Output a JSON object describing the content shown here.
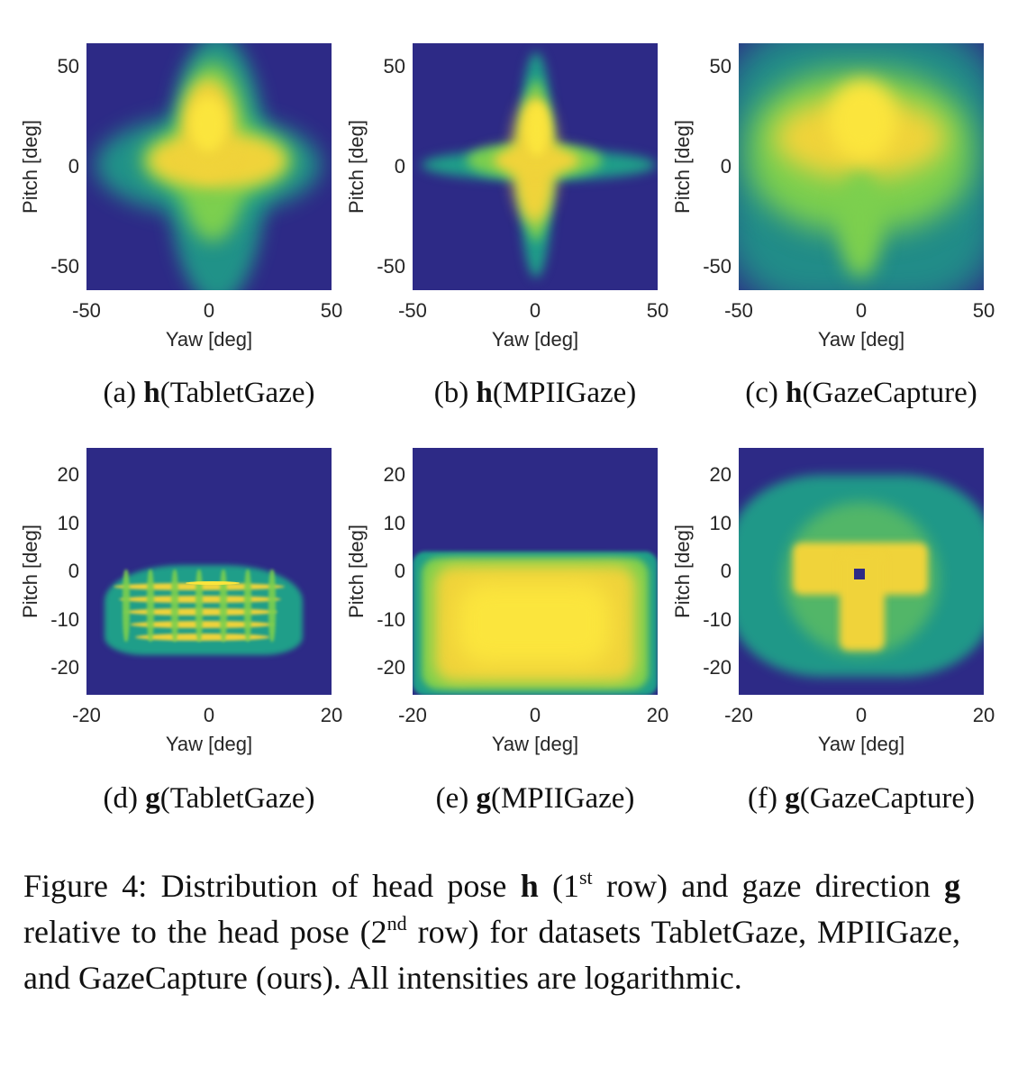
{
  "figure": {
    "panels": [
      {
        "id": "a",
        "label_prefix": "(a)",
        "label_bold": "h",
        "label_rest": "(TabletGaze)",
        "xlabel": "Yaw [deg]",
        "ylabel": "Pitch [deg]",
        "xticks": [
          "-50",
          "0",
          "50"
        ],
        "yticks": [
          "50",
          "0",
          "-50"
        ],
        "pattern": "cross-wide"
      },
      {
        "id": "b",
        "label_prefix": "(b)",
        "label_bold": "h",
        "label_rest": "(MPIIGaze)",
        "xlabel": "Yaw [deg]",
        "ylabel": "Pitch [deg]",
        "xticks": [
          "-50",
          "0",
          "50"
        ],
        "yticks": [
          "50",
          "0",
          "-50"
        ],
        "pattern": "star"
      },
      {
        "id": "c",
        "label_prefix": "(c)",
        "label_bold": "h",
        "label_rest": "(GazeCapture)",
        "xlabel": "Yaw [deg]",
        "ylabel": "Pitch [deg]",
        "xticks": [
          "-50",
          "0",
          "50"
        ],
        "yticks": [
          "50",
          "0",
          "-50"
        ],
        "pattern": "broad"
      },
      {
        "id": "d",
        "label_prefix": "(d)",
        "label_bold": "g",
        "label_rest": "(TabletGaze)",
        "xlabel": "Yaw [deg]",
        "ylabel": "Pitch [deg]",
        "xticks": [
          "-20",
          "0",
          "20"
        ],
        "yticks": [
          "20",
          "10",
          "0",
          "-10",
          "-20"
        ],
        "pattern": "arcs"
      },
      {
        "id": "e",
        "label_prefix": "(e)",
        "label_bold": "g",
        "label_rest": "(MPIIGaze)",
        "xlabel": "Yaw [deg]",
        "ylabel": "Pitch [deg]",
        "xticks": [
          "-20",
          "0",
          "20"
        ],
        "yticks": [
          "20",
          "10",
          "0",
          "-10",
          "-20"
        ],
        "pattern": "rectangle"
      },
      {
        "id": "f",
        "label_prefix": "(f)",
        "label_bold": "g",
        "label_rest": "(GazeCapture)",
        "xlabel": "Yaw [deg]",
        "ylabel": "Pitch [deg]",
        "xticks": [
          "-20",
          "0",
          "20"
        ],
        "yticks": [
          "20",
          "10",
          "0",
          "-10",
          "-20"
        ],
        "pattern": "octagon"
      }
    ],
    "colors": {
      "background": "#2d2a86",
      "low": "#1f9e89",
      "mid": "#7ccf4e",
      "high": "#f0d33a",
      "peak": "#fbe53d"
    }
  },
  "caption": {
    "part1": "Figure 4:  Distribution of head pose ",
    "bold_h": "h",
    "part2": " (1",
    "sup1": "st",
    "part3": " row) and gaze direction ",
    "bold_g": "g",
    "part4": " relative to the head pose (2",
    "sup2": "nd",
    "part5": " row) for datasets TabletGaze, MPIIGaze, and GazeCapture (ours). All intensities are logarithmic."
  }
}
